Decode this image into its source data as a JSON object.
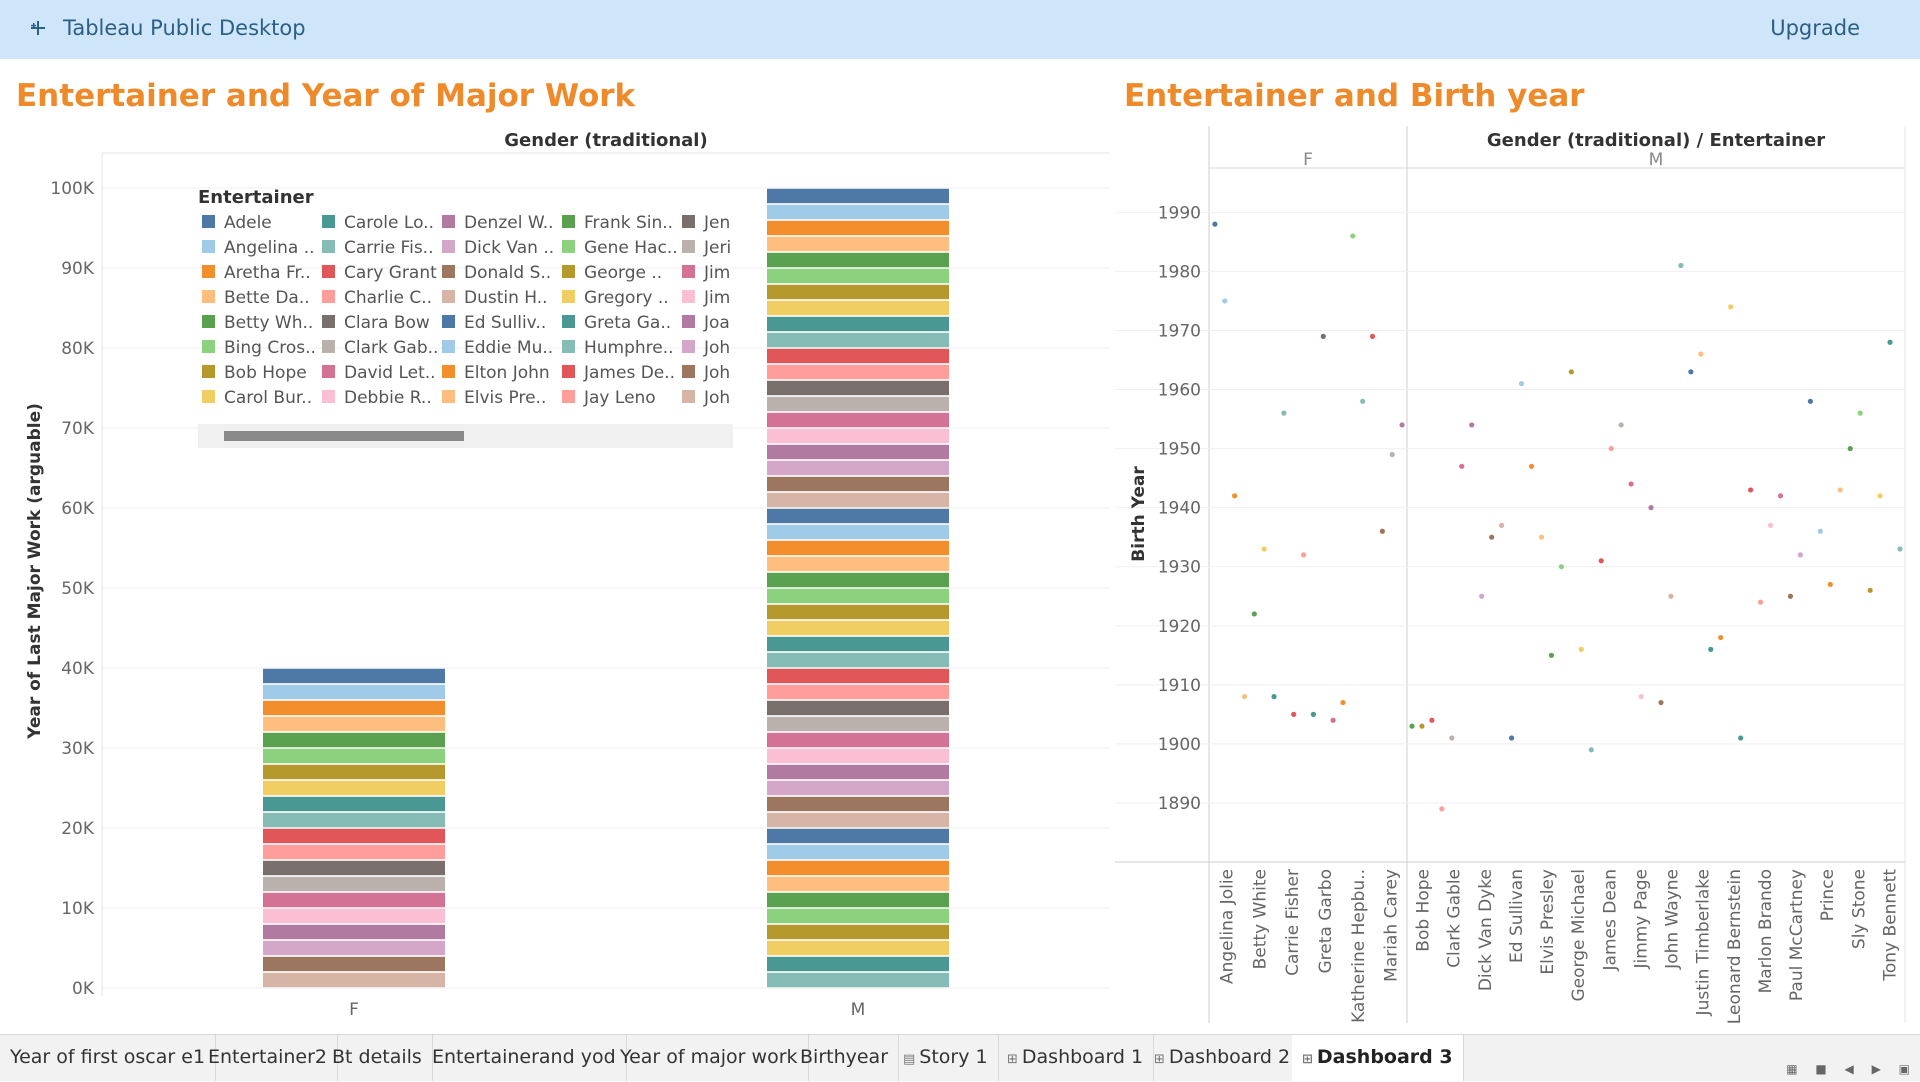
{
  "app": {
    "title": "Tableau Public Desktop",
    "upgrade_label": "Upgrade",
    "logo_icon": "tableau-logo-icon"
  },
  "left_panel": {
    "title": "Entertainer and Year of Major Work",
    "col_header": "Gender (traditional)",
    "y_axis_label": "Year of Last Major Work (arguable)",
    "legend_title": "Entertainer"
  },
  "right_panel": {
    "title": "Entertainer and Birth year",
    "col_header": "Gender (traditional)  /  Entertainer",
    "y_axis_label": "Birth Year"
  },
  "chart_data": [
    {
      "type": "bar",
      "title": "Entertainer and Year of Major Work",
      "xlabel": "Gender (traditional)",
      "ylabel": "Year of Last Major Work (arguable)",
      "ylim": [
        0,
        100000
      ],
      "y_ticks": [
        0,
        10000,
        20000,
        30000,
        40000,
        50000,
        60000,
        70000,
        80000,
        90000,
        100000
      ],
      "y_tick_labels": [
        "0K",
        "10K",
        "20K",
        "30K",
        "40K",
        "50K",
        "60K",
        "70K",
        "80K",
        "90K",
        "100K"
      ],
      "categories": [
        "F",
        "M"
      ],
      "totals": [
        40000,
        100000
      ],
      "stacked_segment_count": [
        20,
        50
      ],
      "stacked_by": "Entertainer",
      "legend_colors": [
        "#4e79a7",
        "#a0cbe8",
        "#f28e2b",
        "#ffbe7d",
        "#59a14f",
        "#8cd17d",
        "#b6992d",
        "#f1ce63",
        "#499894",
        "#86bcb6",
        "#e15759",
        "#ff9d9a",
        "#79706e",
        "#bab0ac",
        "#d37295",
        "#fabfd2",
        "#b07aa1",
        "#d4a6c8",
        "#9d7660",
        "#d7b5a6"
      ],
      "legend": [
        [
          "Adele",
          "Angelina ..",
          "Aretha Fr..",
          "Bette Da..",
          "Betty Wh..",
          "Bing Cros..",
          "Bob Hope",
          "Carol Bur.."
        ],
        [
          "Carole Lo..",
          "Carrie Fis..",
          "Cary Grant",
          "Charlie C..",
          "Clara Bow",
          "Clark Gab..",
          "David Let..",
          "Debbie R.."
        ],
        [
          "Denzel W..",
          "Dick Van ..",
          "Donald S..",
          "Dustin H..",
          "Ed Sulliv..",
          "Eddie Mu..",
          "Elton John",
          "Elvis Pre.."
        ],
        [
          "Frank Sin..",
          "Gene Hac..",
          "George ..",
          "Gregory ..",
          "Greta Ga..",
          "Humphre..",
          "James De..",
          "Jay Leno"
        ],
        [
          "Jen",
          "Jeri",
          "Jim",
          "Jim",
          "Joa",
          "Joh",
          "Joh",
          "Joh"
        ]
      ]
    },
    {
      "type": "scatter",
      "title": "Entertainer and Birth year",
      "ylabel": "Birth Year",
      "ylim": [
        1880,
        1997
      ],
      "y_ticks": [
        1890,
        1900,
        1910,
        1920,
        1930,
        1940,
        1950,
        1960,
        1970,
        1980,
        1990
      ],
      "groups": [
        "F",
        "M"
      ],
      "x_labels": {
        "F": [
          "Angelina Jolie",
          "Betty White",
          "Carrie Fisher",
          "Greta Garbo",
          "Katherine Hepbu..",
          "Mariah Carey"
        ],
        "M": [
          "Bob Hope",
          "Clark Gable",
          "Dick Van Dyke",
          "Ed Sullivan",
          "Elvis Presley",
          "George Michael",
          "James Dean",
          "Jimmy Page",
          "John Wayne",
          "Justin Timberlake",
          "Leonard Bernstein",
          "Marlon Brando",
          "Paul McCartney",
          "Prince",
          "Sly Stone",
          "Tony Bennett"
        ]
      },
      "points": [
        {
          "g": "F",
          "x": 0,
          "y": 1988,
          "c": "#4e79a7"
        },
        {
          "g": "F",
          "x": 1,
          "y": 1975,
          "c": "#a0cbe8"
        },
        {
          "g": "F",
          "x": 2,
          "y": 1942,
          "c": "#f28e2b"
        },
        {
          "g": "F",
          "x": 3,
          "y": 1908,
          "c": "#ffbe7d"
        },
        {
          "g": "F",
          "x": 4,
          "y": 1922,
          "c": "#59a14f"
        },
        {
          "g": "F",
          "x": 5,
          "y": 1933,
          "c": "#f1ce63"
        },
        {
          "g": "F",
          "x": 6,
          "y": 1908,
          "c": "#499894"
        },
        {
          "g": "F",
          "x": 7,
          "y": 1956,
          "c": "#86bcb6"
        },
        {
          "g": "F",
          "x": 8,
          "y": 1905,
          "c": "#e15759"
        },
        {
          "g": "F",
          "x": 9,
          "y": 1932,
          "c": "#ff9d9a"
        },
        {
          "g": "F",
          "x": 10,
          "y": 1905,
          "c": "#499894"
        },
        {
          "g": "F",
          "x": 11,
          "y": 1969,
          "c": "#79706e"
        },
        {
          "g": "F",
          "x": 12,
          "y": 1904,
          "c": "#d37295"
        },
        {
          "g": "F",
          "x": 13,
          "y": 1907,
          "c": "#f28e2b"
        },
        {
          "g": "F",
          "x": 14,
          "y": 1986,
          "c": "#8cd17d"
        },
        {
          "g": "F",
          "x": 15,
          "y": 1958,
          "c": "#86bcb6"
        },
        {
          "g": "F",
          "x": 16,
          "y": 1969,
          "c": "#e15759"
        },
        {
          "g": "F",
          "x": 17,
          "y": 1936,
          "c": "#9d7660"
        },
        {
          "g": "F",
          "x": 18,
          "y": 1949,
          "c": "#bab0ac"
        },
        {
          "g": "F",
          "x": 19,
          "y": 1954,
          "c": "#b07aa1"
        },
        {
          "g": "M",
          "x": 0,
          "y": 1903,
          "c": "#59a14f"
        },
        {
          "g": "M",
          "x": 1,
          "y": 1903,
          "c": "#b6992d"
        },
        {
          "g": "M",
          "x": 2,
          "y": 1904,
          "c": "#e15759"
        },
        {
          "g": "M",
          "x": 3,
          "y": 1889,
          "c": "#ff9d9a"
        },
        {
          "g": "M",
          "x": 4,
          "y": 1901,
          "c": "#bab0ac"
        },
        {
          "g": "M",
          "x": 5,
          "y": 1947,
          "c": "#d37295"
        },
        {
          "g": "M",
          "x": 6,
          "y": 1954,
          "c": "#b07aa1"
        },
        {
          "g": "M",
          "x": 7,
          "y": 1925,
          "c": "#d4a6c8"
        },
        {
          "g": "M",
          "x": 8,
          "y": 1935,
          "c": "#9d7660"
        },
        {
          "g": "M",
          "x": 9,
          "y": 1937,
          "c": "#d7b5a6"
        },
        {
          "g": "M",
          "x": 10,
          "y": 1901,
          "c": "#4e79a7"
        },
        {
          "g": "M",
          "x": 11,
          "y": 1961,
          "c": "#a0cbe8"
        },
        {
          "g": "M",
          "x": 12,
          "y": 1947,
          "c": "#f28e2b"
        },
        {
          "g": "M",
          "x": 13,
          "y": 1935,
          "c": "#ffbe7d"
        },
        {
          "g": "M",
          "x": 14,
          "y": 1915,
          "c": "#59a14f"
        },
        {
          "g": "M",
          "x": 15,
          "y": 1930,
          "c": "#8cd17d"
        },
        {
          "g": "M",
          "x": 16,
          "y": 1963,
          "c": "#b6992d"
        },
        {
          "g": "M",
          "x": 17,
          "y": 1916,
          "c": "#f1ce63"
        },
        {
          "g": "M",
          "x": 18,
          "y": 1899,
          "c": "#86bcb6"
        },
        {
          "g": "M",
          "x": 19,
          "y": 1931,
          "c": "#e15759"
        },
        {
          "g": "M",
          "x": 20,
          "y": 1950,
          "c": "#ff9d9a"
        },
        {
          "g": "M",
          "x": 21,
          "y": 1954,
          "c": "#bab0ac"
        },
        {
          "g": "M",
          "x": 22,
          "y": 1944,
          "c": "#d37295"
        },
        {
          "g": "M",
          "x": 23,
          "y": 1908,
          "c": "#fabfd2"
        },
        {
          "g": "M",
          "x": 24,
          "y": 1940,
          "c": "#b07aa1"
        },
        {
          "g": "M",
          "x": 25,
          "y": 1907,
          "c": "#9d7660"
        },
        {
          "g": "M",
          "x": 26,
          "y": 1925,
          "c": "#d7b5a6"
        },
        {
          "g": "M",
          "x": 27,
          "y": 1981,
          "c": "#86bcb6"
        },
        {
          "g": "M",
          "x": 28,
          "y": 1963,
          "c": "#4e79a7"
        },
        {
          "g": "M",
          "x": 29,
          "y": 1966,
          "c": "#ffbe7d"
        },
        {
          "g": "M",
          "x": 30,
          "y": 1916,
          "c": "#499894"
        },
        {
          "g": "M",
          "x": 31,
          "y": 1918,
          "c": "#f28e2b"
        },
        {
          "g": "M",
          "x": 32,
          "y": 1974,
          "c": "#f1ce63"
        },
        {
          "g": "M",
          "x": 33,
          "y": 1901,
          "c": "#499894"
        },
        {
          "g": "M",
          "x": 34,
          "y": 1943,
          "c": "#e15759"
        },
        {
          "g": "M",
          "x": 35,
          "y": 1924,
          "c": "#ff9d9a"
        },
        {
          "g": "M",
          "x": 36,
          "y": 1937,
          "c": "#fabfd2"
        },
        {
          "g": "M",
          "x": 37,
          "y": 1942,
          "c": "#d37295"
        },
        {
          "g": "M",
          "x": 38,
          "y": 1925,
          "c": "#9d7660"
        },
        {
          "g": "M",
          "x": 39,
          "y": 1932,
          "c": "#d4a6c8"
        },
        {
          "g": "M",
          "x": 40,
          "y": 1958,
          "c": "#4e79a7"
        },
        {
          "g": "M",
          "x": 41,
          "y": 1936,
          "c": "#a0cbe8"
        },
        {
          "g": "M",
          "x": 42,
          "y": 1927,
          "c": "#f28e2b"
        },
        {
          "g": "M",
          "x": 43,
          "y": 1943,
          "c": "#ffbe7d"
        },
        {
          "g": "M",
          "x": 44,
          "y": 1950,
          "c": "#59a14f"
        },
        {
          "g": "M",
          "x": 45,
          "y": 1956,
          "c": "#8cd17d"
        },
        {
          "g": "M",
          "x": 46,
          "y": 1926,
          "c": "#b6992d"
        },
        {
          "g": "M",
          "x": 47,
          "y": 1942,
          "c": "#f1ce63"
        },
        {
          "g": "M",
          "x": 48,
          "y": 1968,
          "c": "#499894"
        },
        {
          "g": "M",
          "x": 49,
          "y": 1933,
          "c": "#86bcb6"
        }
      ]
    }
  ],
  "tabs": [
    {
      "label": "Year of first oscar e1",
      "icon": ""
    },
    {
      "label": "Entertainer2",
      "icon": ""
    },
    {
      "label": "Bt details",
      "icon": ""
    },
    {
      "label": "Entertainerand yod",
      "icon": ""
    },
    {
      "label": "Year of major work",
      "icon": ""
    },
    {
      "label": "Birthyear",
      "icon": ""
    },
    {
      "label": "Story 1",
      "icon": "story-icon"
    },
    {
      "label": "Dashboard 1",
      "icon": "dashboard-icon"
    },
    {
      "label": "Dashboard 2",
      "icon": "dashboard-icon"
    },
    {
      "label": "Dashboard 3",
      "icon": "dashboard-icon",
      "active": true
    }
  ],
  "nav_icons": [
    "grid-view-icon",
    "filmstrip-icon",
    "prev-sheet-icon",
    "next-sheet-icon",
    "fullscreen-icon"
  ]
}
